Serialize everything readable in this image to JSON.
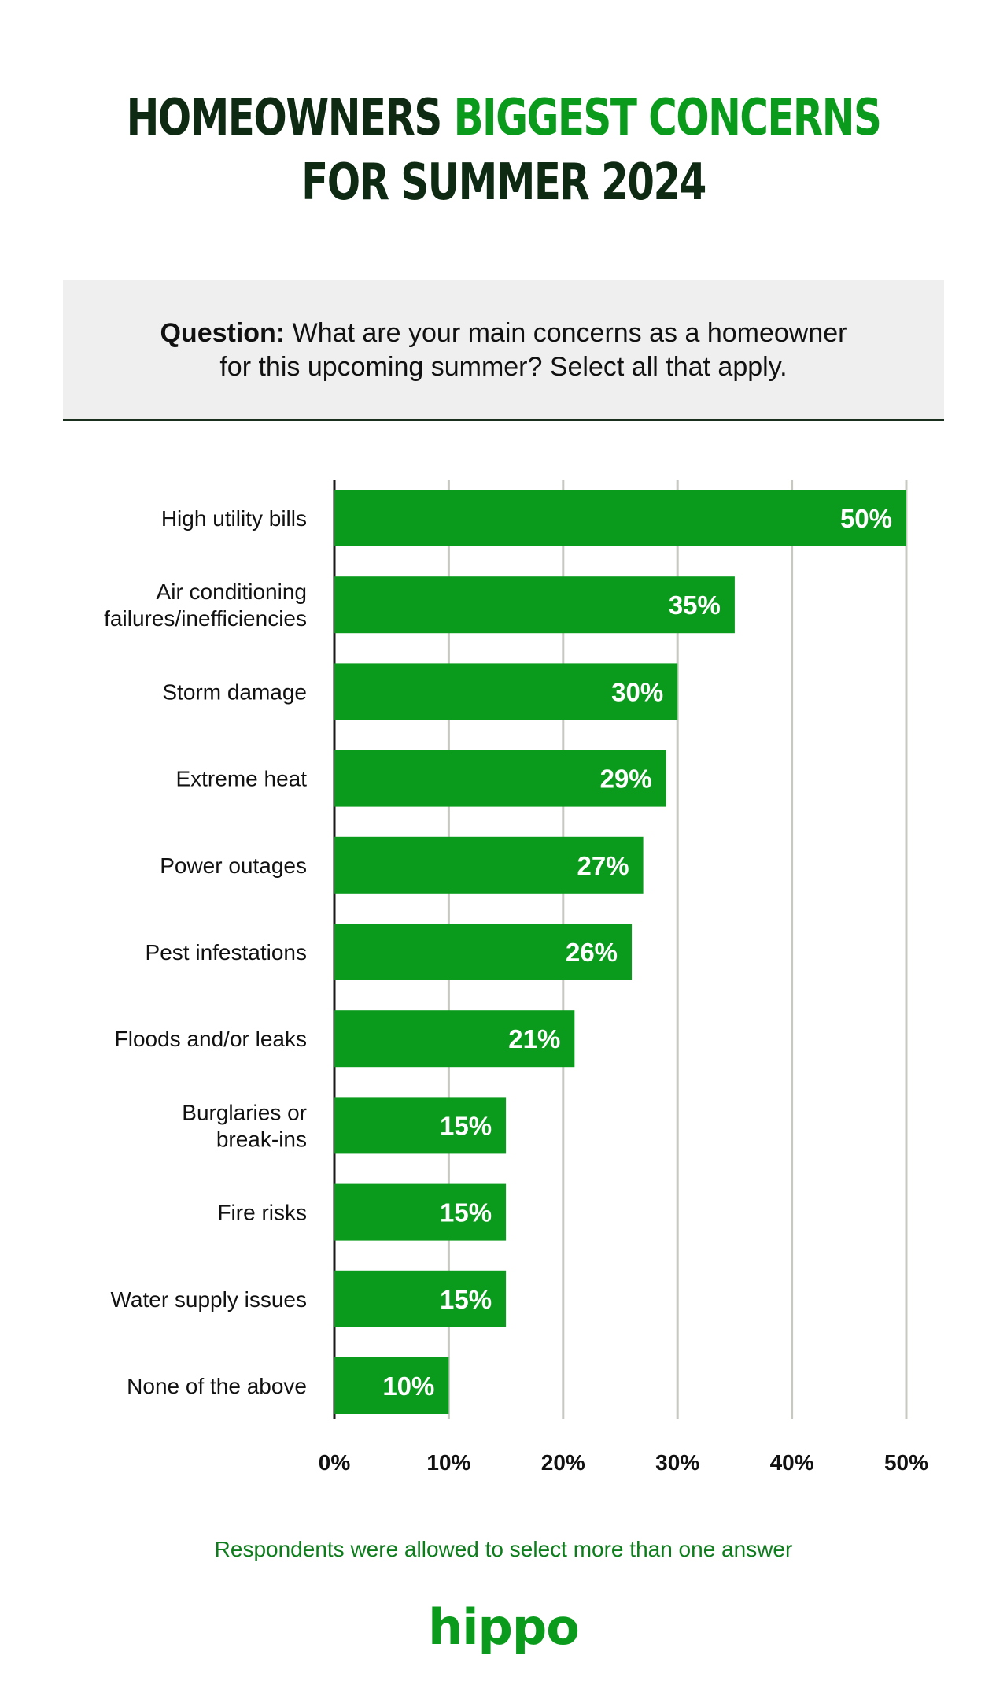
{
  "title": {
    "line1_dark": "HOMEOWNERS",
    "line1_green": "BIGGEST CONCERNS",
    "line2": "FOR SUMMER 2024"
  },
  "question": {
    "label": "Question:",
    "line1": "What are your main concerns as a homeowner",
    "line2": "for this upcoming summer? Select all that apply."
  },
  "colors": {
    "bar": "#0a9b1c",
    "title_dark": "#0e2a12",
    "title_green": "#0a9b1c",
    "gridline": "#c8c8c2",
    "axis": "#1a1a1a"
  },
  "chart_data": {
    "type": "bar",
    "orientation": "horizontal",
    "categories": [
      [
        "High utility bills"
      ],
      [
        "Air conditioning",
        "failures/inefficiencies"
      ],
      [
        "Storm damage"
      ],
      [
        "Extreme heat"
      ],
      [
        "Power outages"
      ],
      [
        "Pest infestations"
      ],
      [
        "Floods and/or leaks"
      ],
      [
        "Burglaries or",
        "break-ins"
      ],
      [
        "Fire risks"
      ],
      [
        "Water supply issues"
      ],
      [
        "None of the above"
      ]
    ],
    "values": [
      50,
      35,
      30,
      29,
      27,
      26,
      21,
      15,
      15,
      15,
      10
    ],
    "value_labels": [
      "50%",
      "35%",
      "30%",
      "29%",
      "27%",
      "26%",
      "21%",
      "15%",
      "15%",
      "15%",
      "10%"
    ],
    "xlim": [
      0,
      50
    ],
    "ticks": [
      0,
      10,
      20,
      30,
      40,
      50
    ],
    "tick_labels": [
      "0%",
      "10%",
      "20%",
      "30%",
      "40%",
      "50%"
    ],
    "grid": true
  },
  "footnote": "Respondents were allowed to select more than one answer",
  "brand": "hippo"
}
